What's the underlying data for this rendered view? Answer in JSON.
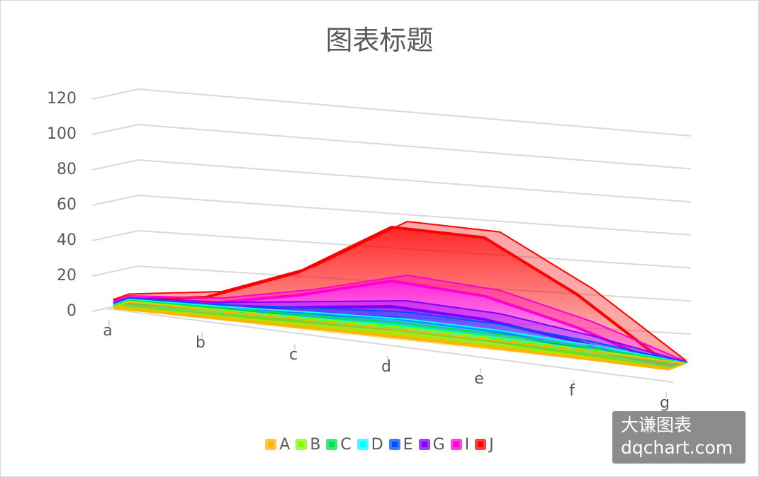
{
  "chart_data": {
    "type": "area",
    "subtype": "3d-stacked-area",
    "title": "图表标题",
    "categories": [
      "a",
      "b",
      "c",
      "d",
      "e",
      "f",
      "g"
    ],
    "ylim": [
      0,
      120
    ],
    "yticks": [
      0,
      20,
      40,
      60,
      80,
      100,
      120
    ],
    "grid": true,
    "legend_position": "bottom",
    "series": [
      {
        "name": "A",
        "color": "#FFB400",
        "values": [
          0.5,
          1,
          1.5,
          2,
          2,
          1.5,
          0.2
        ]
      },
      {
        "name": "B",
        "color": "#7FFF00",
        "values": [
          0.5,
          1,
          1.5,
          2,
          2,
          1.5,
          0.2
        ]
      },
      {
        "name": "C",
        "color": "#00E050",
        "values": [
          0.5,
          1,
          2,
          3,
          3,
          2,
          0.3
        ]
      },
      {
        "name": "D",
        "color": "#00FFFF",
        "values": [
          0.5,
          1,
          2,
          3,
          3,
          2,
          0.3
        ]
      },
      {
        "name": "E",
        "color": "#0050FF",
        "values": [
          0.5,
          1,
          3,
          5,
          5,
          3,
          0.4
        ]
      },
      {
        "name": "G",
        "color": "#8000FF",
        "values": [
          0.5,
          1.5,
          4,
          8,
          8,
          5,
          0.5
        ]
      },
      {
        "name": "I",
        "color": "#FF00D0",
        "values": [
          1,
          2.5,
          8,
          18,
          18,
          12,
          0.6
        ]
      },
      {
        "name": "J",
        "color": "#FF0000",
        "values": [
          1,
          4,
          15,
          38,
          45,
          28,
          1
        ]
      }
    ]
  },
  "watermark": {
    "line1": "大谦图表",
    "line2": "dqchart.com"
  }
}
